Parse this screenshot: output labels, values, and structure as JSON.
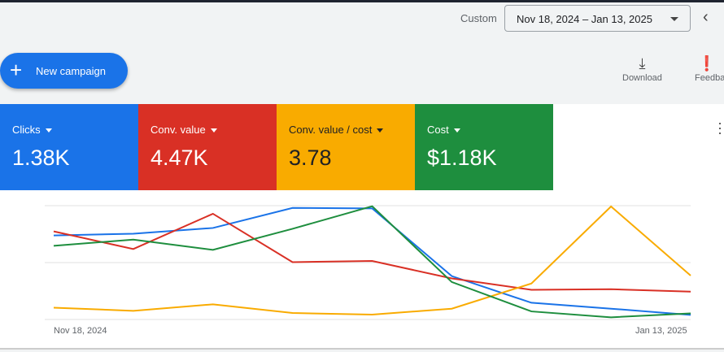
{
  "header": {
    "range_label": "Custom",
    "date_range": "Nov 18, 2024 – Jan 13, 2025"
  },
  "toolbar": {
    "new_campaign": "New campaign",
    "download": "Download",
    "feedback": "Feedba"
  },
  "cards": [
    {
      "name": "Clicks",
      "value": "1.38K",
      "color": "#1a73e8"
    },
    {
      "name": "Conv. value",
      "value": "4.47K",
      "color": "#d93025"
    },
    {
      "name": "Conv. value / cost",
      "value": "3.78",
      "color": "#f9ab00"
    },
    {
      "name": "Cost",
      "value": "$1.18K",
      "color": "#1e8e3e"
    }
  ],
  "chart_data": {
    "type": "line",
    "x_start_label": "Nov 18, 2024",
    "x_end_label": "Jan 13, 2025",
    "ylim": [
      0,
      100
    ],
    "grid": true,
    "series": [
      {
        "metric": "Clicks",
        "color": "#1a73e8",
        "values": [
          73.8,
          75.4,
          80.4,
          98,
          97.6,
          38.1,
          14.7,
          9.5,
          4
        ]
      },
      {
        "metric": "Conv. value",
        "color": "#d93025",
        "values": [
          77.4,
          61.9,
          92.9,
          50.4,
          51.4,
          36.1,
          26.1,
          26.6,
          24.5
        ]
      },
      {
        "metric": "Conv. value / cost",
        "color": "#f9ab00",
        "values": [
          10.4,
          7.6,
          13.3,
          5.7,
          4.3,
          9.5,
          31.6,
          99.3,
          38.6
        ]
      },
      {
        "metric": "Cost",
        "color": "#1e8e3e",
        "values": [
          64.7,
          70.2,
          61.2,
          79.7,
          99.5,
          32.9,
          7.1,
          1.9,
          5.4
        ]
      }
    ]
  }
}
